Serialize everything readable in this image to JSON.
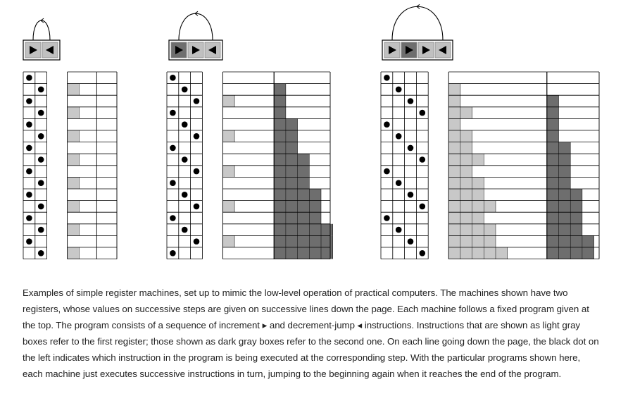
{
  "colors": {
    "light_gray": "#c8c8c8",
    "dark_gray": "#6e6e6e",
    "instruction_bg": "#c0c0c0",
    "line": "#000000",
    "dot": "#000000"
  },
  "icons": {
    "increment": "right-triangle-icon",
    "decrement_jump": "left-triangle-icon",
    "loop": "loop-arrow-icon"
  },
  "machines": [
    {
      "id": "machine-1",
      "program": [
        {
          "op": "inc",
          "reg": 1
        },
        {
          "op": "dec",
          "reg": 1
        }
      ],
      "steps": 16,
      "instruction_trace": [
        0,
        1,
        0,
        1,
        0,
        1,
        0,
        1,
        0,
        1,
        0,
        1,
        0,
        1,
        0,
        1
      ],
      "register1": [
        0,
        1,
        0,
        1,
        0,
        1,
        0,
        1,
        0,
        1,
        0,
        1,
        0,
        1,
        0,
        1
      ],
      "register2": [
        0,
        0,
        0,
        0,
        0,
        0,
        0,
        0,
        0,
        0,
        0,
        0,
        0,
        0,
        0,
        0
      ]
    },
    {
      "id": "machine-2",
      "program": [
        {
          "op": "inc",
          "reg": 2
        },
        {
          "op": "inc",
          "reg": 1
        },
        {
          "op": "dec",
          "reg": 1
        }
      ],
      "steps": 16,
      "instruction_trace": [
        0,
        1,
        2,
        0,
        1,
        2,
        0,
        1,
        2,
        0,
        1,
        2,
        0,
        1,
        2,
        0
      ],
      "register1": [
        0,
        0,
        1,
        0,
        0,
        1,
        0,
        0,
        1,
        0,
        0,
        1,
        0,
        0,
        1,
        0
      ],
      "register2": [
        0,
        1,
        1,
        1,
        2,
        2,
        2,
        3,
        3,
        3,
        4,
        4,
        4,
        5,
        5,
        5
      ]
    },
    {
      "id": "machine-3",
      "program": [
        {
          "op": "inc",
          "reg": 1
        },
        {
          "op": "inc",
          "reg": 2
        },
        {
          "op": "inc",
          "reg": 1
        },
        {
          "op": "dec",
          "reg": 1
        }
      ],
      "steps": 16,
      "instruction_trace": [
        0,
        1,
        2,
        3,
        0,
        1,
        2,
        3,
        0,
        1,
        2,
        3,
        0,
        1,
        2,
        3
      ],
      "register1": [
        0,
        1,
        1,
        2,
        1,
        2,
        2,
        3,
        2,
        3,
        3,
        4,
        3,
        4,
        4,
        5
      ],
      "register2": [
        0,
        0,
        1,
        1,
        1,
        1,
        2,
        2,
        2,
        2,
        3,
        3,
        3,
        3,
        4,
        4
      ]
    }
  ],
  "caption": "Examples of simple register machines, set up to mimic the low-level operation of practical computers. The machines shown have two registers, whose values on successive steps are given on successive lines down the page. Each machine follows a fixed program given at the top. The program consists of a sequence of increment ▸ and decrement-jump ◂ instructions. Instructions that are shown as light gray boxes refer to the first register; those shown as dark gray boxes refer to the second one. On each line going down the page, the black dot on the left indicates which instruction in the program is being executed at the corresponding step. With the particular programs shown here, each machine just executes successive instructions in turn, jumping to the beginning again when it reaches the end of the program."
}
